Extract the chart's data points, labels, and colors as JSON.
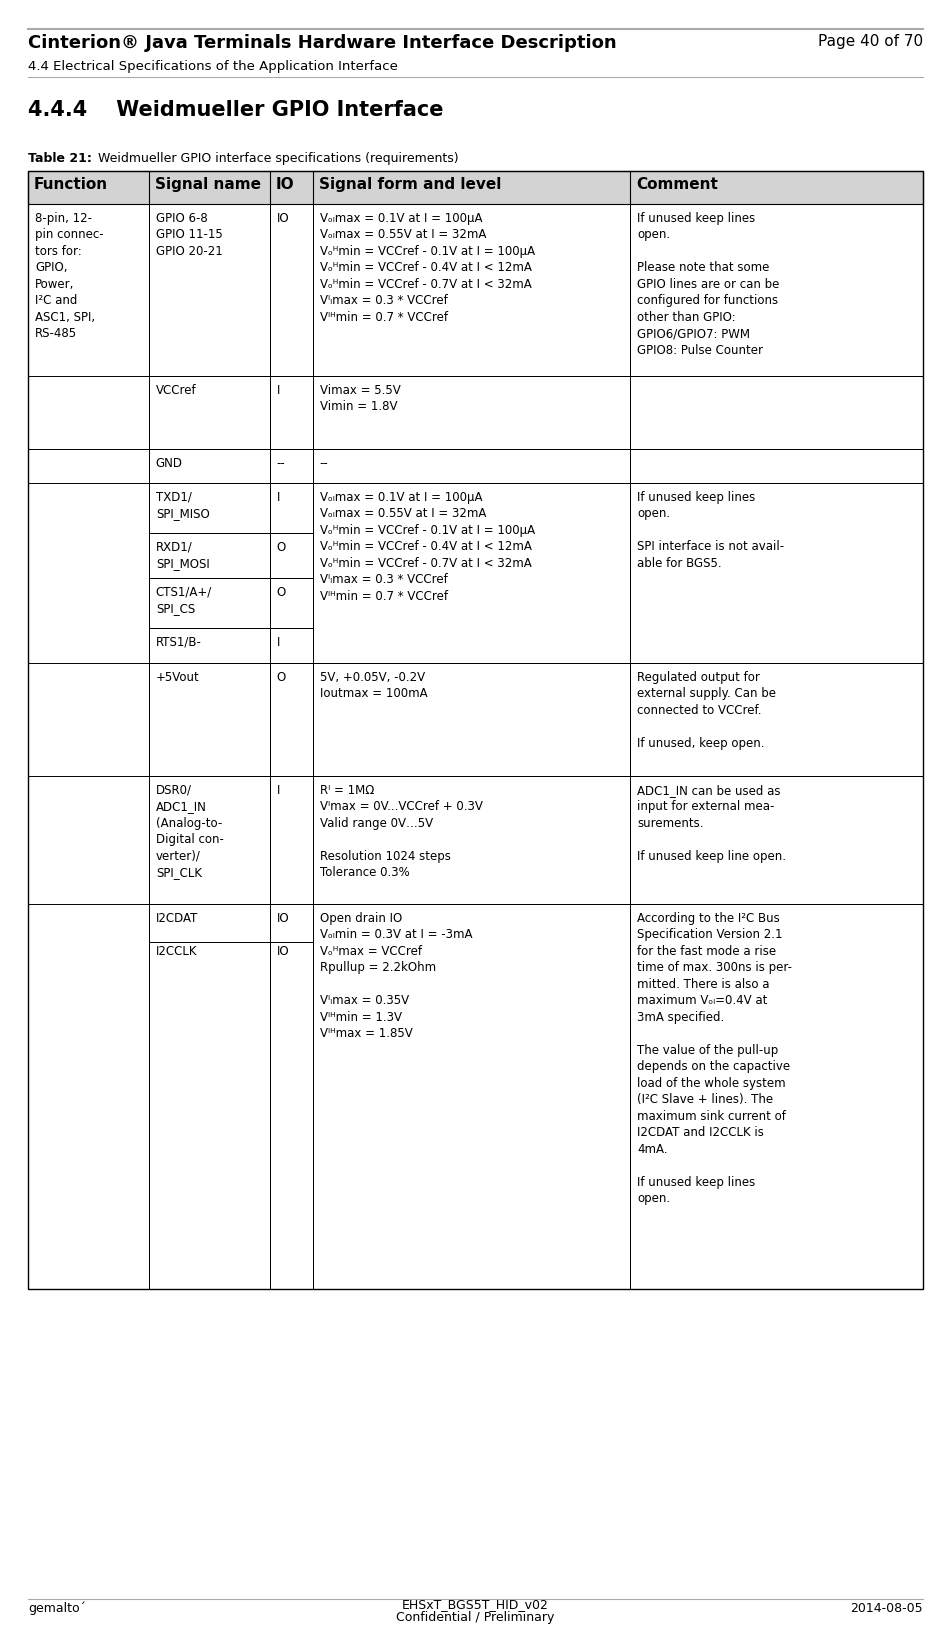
{
  "header_title": "Cinterion® Java Terminals Hardware Interface Description",
  "header_page": "Page 40 of 70",
  "header_sub": "4.4 Electrical Specifications of the Application Interface",
  "section_title": "4.4.4    Weidmueller GPIO Interface",
  "table_caption_bold": "Table 21:",
  "table_caption_normal": "  Weidmueller GPIO interface specifications (requirements)",
  "col_headers": [
    "Function",
    "Signal name",
    "IO",
    "Signal form and level",
    "Comment"
  ],
  "footer_left": "gemalto´",
  "footer_center1": "EHSxT_BGS5T_HID_v02",
  "footer_center2": "Confidential / Preliminary",
  "footer_right": "2014-08-05",
  "border_color": "#000000",
  "header_bg": "#d3d3d3",
  "separator_color": "#bbbbbb",
  "font_size_header": 11,
  "font_size_body": 8.5,
  "font_size_title_main": 13,
  "font_size_section": 15,
  "font_size_caption": 9,
  "font_size_footer": 9
}
